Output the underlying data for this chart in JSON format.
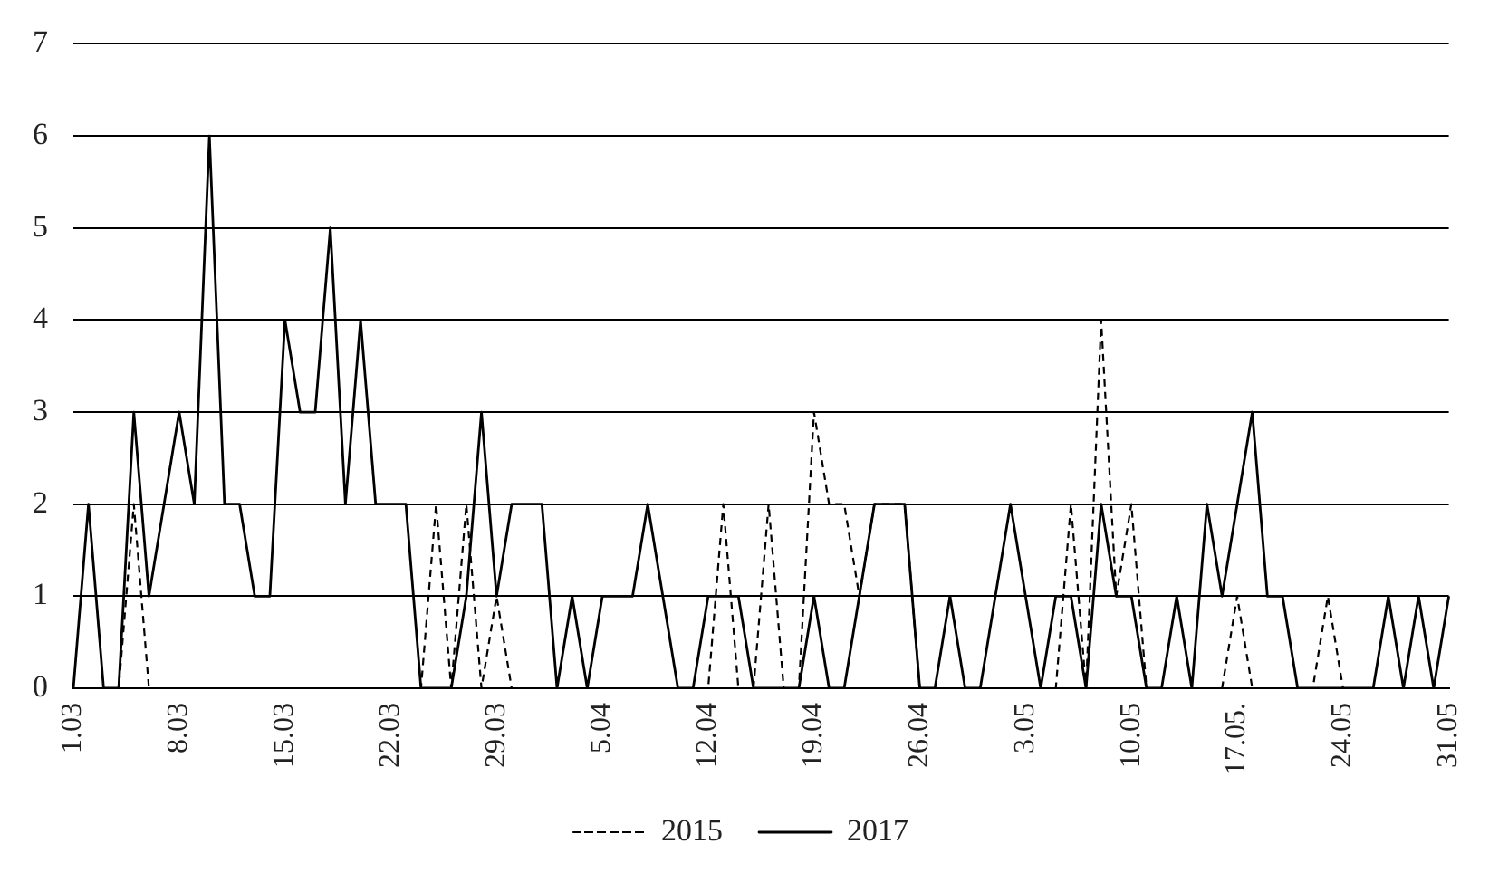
{
  "chart_data": {
    "type": "line",
    "categories": [
      "1.03",
      null,
      null,
      null,
      null,
      null,
      null,
      "8.03",
      null,
      null,
      null,
      null,
      null,
      null,
      "15.03",
      null,
      null,
      null,
      null,
      null,
      null,
      "22.03",
      null,
      null,
      null,
      null,
      null,
      null,
      "29.03",
      null,
      null,
      null,
      null,
      null,
      null,
      "5.04",
      null,
      null,
      null,
      null,
      null,
      null,
      "12.04",
      null,
      null,
      null,
      null,
      null,
      null,
      "19.04",
      null,
      null,
      null,
      null,
      null,
      null,
      "26.04",
      null,
      null,
      null,
      null,
      null,
      null,
      "3.05",
      null,
      null,
      null,
      null,
      null,
      null,
      "10.05",
      null,
      null,
      null,
      null,
      null,
      null,
      "17.05.",
      null,
      null,
      null,
      null,
      null,
      null,
      "24.05",
      null,
      null,
      null,
      null,
      null,
      null,
      "31.05"
    ],
    "series": [
      {
        "name": "2015",
        "color": "#000000",
        "line_style": "dashed",
        "values": [
          0,
          0,
          0,
          0,
          2,
          0,
          0,
          0,
          0,
          0,
          0,
          0,
          0,
          0,
          0,
          0,
          0,
          0,
          0,
          0,
          0,
          0,
          0,
          0,
          2,
          0,
          2,
          0,
          1,
          0,
          0,
          0,
          0,
          0,
          0,
          0,
          0,
          0,
          0,
          0,
          0,
          0,
          0,
          2,
          0,
          0,
          2,
          0,
          0,
          3,
          2,
          2,
          1,
          2,
          2,
          2,
          0,
          0,
          0,
          0,
          0,
          0,
          0,
          0,
          0,
          0,
          2,
          0,
          4,
          1,
          2,
          0,
          0,
          0,
          0,
          0,
          0,
          1,
          0,
          0,
          0,
          0,
          0,
          1,
          0,
          0,
          0,
          0,
          0,
          0,
          0,
          0
        ]
      },
      {
        "name": "2017",
        "color": "#000000",
        "line_style": "solid",
        "values": [
          0,
          2,
          0,
          0,
          3,
          1,
          2,
          3,
          2,
          6,
          2,
          2,
          1,
          1,
          4,
          3,
          3,
          5,
          2,
          4,
          2,
          2,
          2,
          0,
          0,
          0,
          1,
          3,
          1,
          2,
          2,
          2,
          0,
          1,
          0,
          1,
          1,
          1,
          2,
          1,
          0,
          0,
          1,
          1,
          1,
          0,
          0,
          0,
          0,
          1,
          0,
          0,
          1,
          2,
          2,
          2,
          0,
          0,
          1,
          0,
          0,
          1,
          2,
          1,
          0,
          1,
          1,
          0,
          2,
          1,
          1,
          0,
          0,
          1,
          0,
          2,
          1,
          2,
          3,
          1,
          1,
          0,
          0,
          0,
          0,
          0,
          0,
          1,
          0,
          1,
          0,
          1
        ]
      }
    ],
    "ylim": [
      0,
      7
    ],
    "yticks": [
      0,
      1,
      2,
      3,
      4,
      5,
      6,
      7
    ],
    "grid": "y",
    "legend": "bottom",
    "marker": "none"
  }
}
